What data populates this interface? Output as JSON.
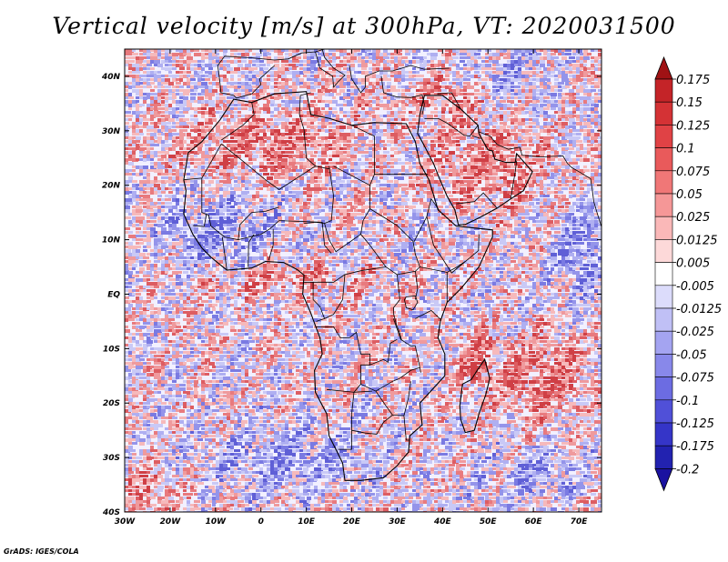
{
  "title": "Vertical velocity [m/s] at 300hPa, VT: 2020031500",
  "footer": "GrADS: IGES/COLA",
  "map": {
    "lon_range": [
      -30,
      75
    ],
    "lat_range": [
      -40,
      45
    ],
    "lat_ticks": [
      {
        "value": 40,
        "label": "40N"
      },
      {
        "value": 30,
        "label": "30N"
      },
      {
        "value": 20,
        "label": "20N"
      },
      {
        "value": 10,
        "label": "10N"
      },
      {
        "value": 0,
        "label": "EQ"
      },
      {
        "value": -10,
        "label": "10S"
      },
      {
        "value": -20,
        "label": "20S"
      },
      {
        "value": -30,
        "label": "30S"
      },
      {
        "value": -40,
        "label": "40S"
      }
    ],
    "lon_ticks": [
      {
        "value": -30,
        "label": "30W"
      },
      {
        "value": -20,
        "label": "20W"
      },
      {
        "value": -10,
        "label": "10W"
      },
      {
        "value": 0,
        "label": "0"
      },
      {
        "value": 10,
        "label": "10E"
      },
      {
        "value": 20,
        "label": "20E"
      },
      {
        "value": 30,
        "label": "30E"
      },
      {
        "value": 40,
        "label": "40E"
      },
      {
        "value": 50,
        "label": "50E"
      },
      {
        "value": 60,
        "label": "60E"
      },
      {
        "value": 70,
        "label": "70E"
      }
    ]
  },
  "colorbar": {
    "levels": [
      {
        "label": "0.175",
        "color": "#b1191c"
      },
      {
        "label": "0.15",
        "color": "#c42428"
      },
      {
        "label": "0.125",
        "color": "#d43235"
      },
      {
        "label": "0.1",
        "color": "#e04245"
      },
      {
        "label": "0.075",
        "color": "#e95a5b"
      },
      {
        "label": "0.05",
        "color": "#f07777"
      },
      {
        "label": "0.025",
        "color": "#f59797"
      },
      {
        "label": "0.0125",
        "color": "#fab8b8"
      },
      {
        "label": "0.005",
        "color": "#fdd9d9"
      },
      {
        "label": "-0.005",
        "color": "#ffffff"
      },
      {
        "label": "-0.0125",
        "color": "#dcdcfb"
      },
      {
        "label": "-0.025",
        "color": "#c0c0f6"
      },
      {
        "label": "-0.05",
        "color": "#a4a4f1"
      },
      {
        "label": "-0.075",
        "color": "#8888ea"
      },
      {
        "label": "-0.1",
        "color": "#6c6ce2"
      },
      {
        "label": "-0.125",
        "color": "#5050d8"
      },
      {
        "label": "-0.175",
        "color": "#3535c8"
      },
      {
        "label": "-0.2",
        "color": "#2222b0"
      }
    ],
    "top_arrow_color": "#a01214",
    "bottom_arrow_color": "#1a12a0"
  },
  "colors": {
    "positive_area": "#e98a8e",
    "negative_area": "#8c8cea",
    "neutral_area": "#f2f0ff",
    "coastline": "#000000"
  }
}
